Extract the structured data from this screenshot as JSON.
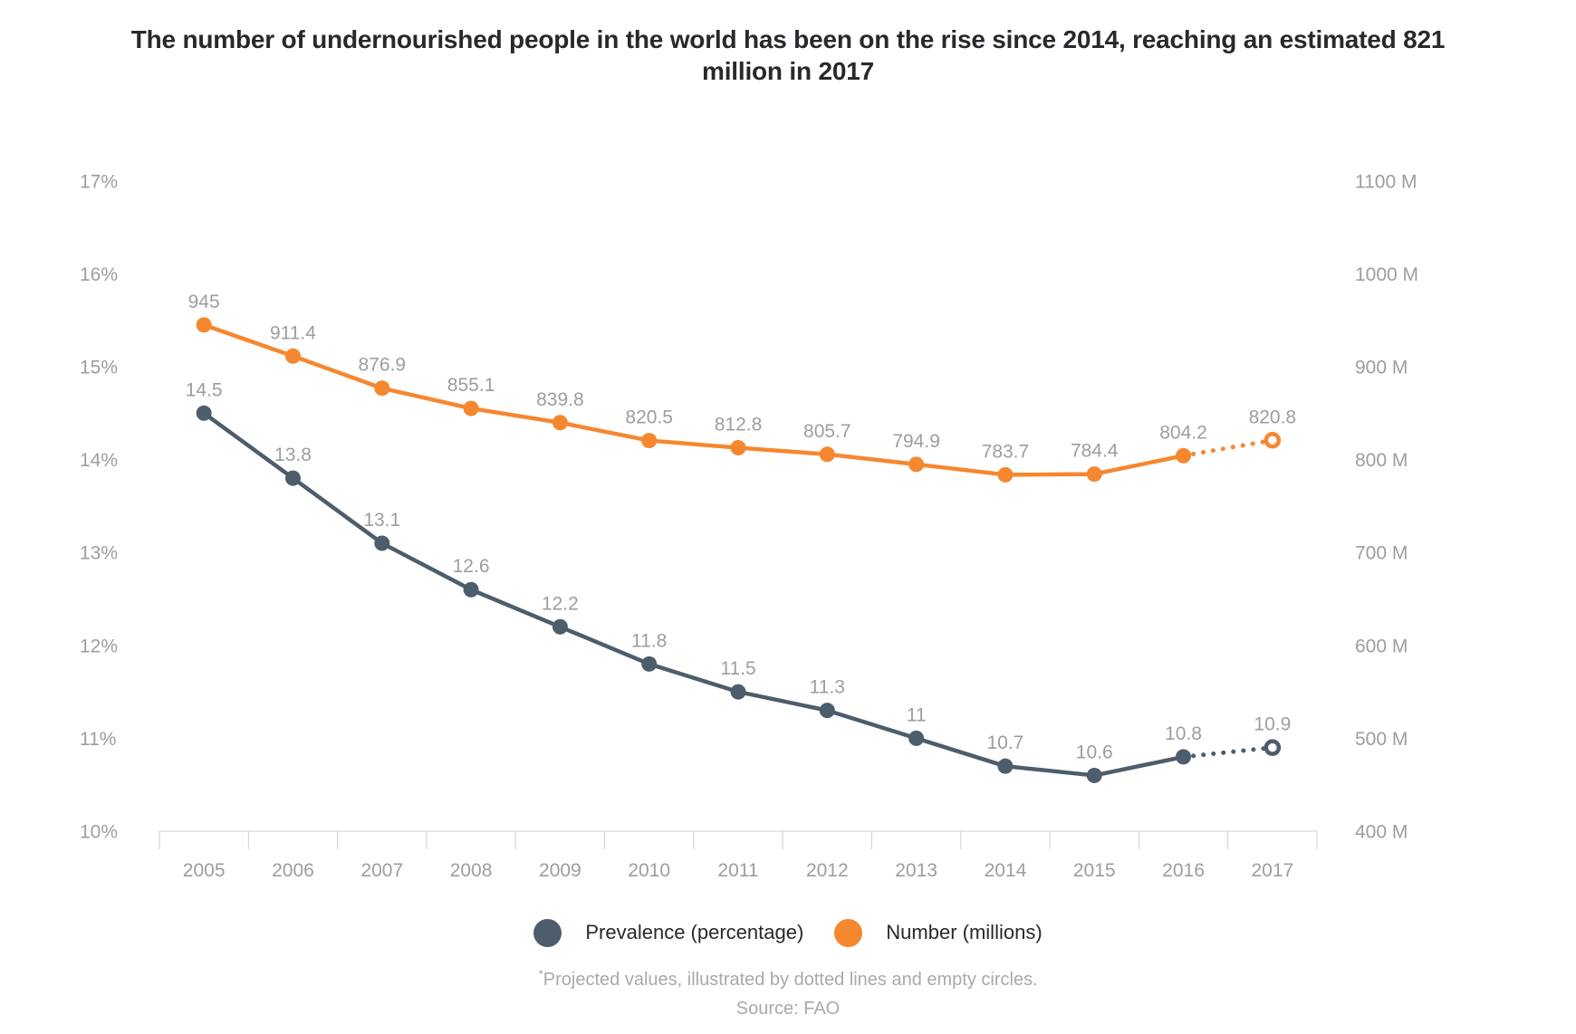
{
  "page": {
    "title": "The number of undernourished people in the world has been on the rise since 2014, reaching an estimated 821\nmillion in 2017",
    "footnote_marker": "*",
    "footnote": "Projected values, illustrated by dotted lines and empty circles.",
    "source": "Source: FAO"
  },
  "legend": {
    "items": [
      {
        "label": "Prevalence (percentage)",
        "color": "#4d5d6c"
      },
      {
        "label": "Number (millions)",
        "color": "#f5872f"
      }
    ]
  },
  "colors": {
    "title": "#26292e",
    "legend_text": "#26292e",
    "axis_text": "#9b9ea1",
    "data_label": "#9b9ea1",
    "axis_line": "#cdcfd0",
    "footnote": "#a7a9ac",
    "background": "#ffffff",
    "prevalence_series": "#4d5d6c",
    "number_series": "#f5872f"
  },
  "chart_data": {
    "type": "line",
    "title": "The number of undernourished people in the world has been on the rise since 2014, reaching an estimated 821 million in 2017",
    "x": [
      "2005",
      "2006",
      "2007",
      "2008",
      "2009",
      "2010",
      "2011",
      "2012",
      "2013",
      "2014",
      "2015",
      "2016",
      "2017"
    ],
    "grid": false,
    "legend_position": "bottom",
    "annotation": "Projected values, illustrated by dotted lines and empty circles.",
    "source": "FAO",
    "left_axis": {
      "unit": "%",
      "min": 10,
      "max": 17,
      "tick_step": 1,
      "tick_labels": [
        "10%",
        "11%",
        "12%",
        "13%",
        "14%",
        "15%",
        "16%",
        "17%"
      ]
    },
    "right_axis": {
      "unit": "M",
      "min": 400,
      "max": 1100,
      "tick_step": 100,
      "tick_labels": [
        "400 M",
        "500 M",
        "600 M",
        "700 M",
        "800 M",
        "900 M",
        "1000 M",
        "1100 M"
      ]
    },
    "series": [
      {
        "name": "Prevalence (percentage)",
        "slug": "prevalence",
        "axis": "left",
        "color": "#4d5d6c",
        "values": [
          14.5,
          13.8,
          13.1,
          12.6,
          12.2,
          11.8,
          11.5,
          11.3,
          11,
          10.7,
          10.6,
          10.8,
          10.9
        ],
        "labels": [
          "14.5",
          "13.8",
          "13.1",
          "12.6",
          "12.2",
          "11.8",
          "11.5",
          "11.3",
          "11",
          "10.7",
          "10.6",
          "10.8",
          "10.9"
        ],
        "projected_from_index": 11
      },
      {
        "name": "Number (millions)",
        "slug": "number",
        "axis": "right",
        "color": "#f5872f",
        "values": [
          945,
          911.4,
          876.9,
          855.1,
          839.8,
          820.5,
          812.8,
          805.7,
          794.9,
          783.7,
          784.4,
          804.2,
          820.8
        ],
        "labels": [
          "945",
          "911.4",
          "876.9",
          "855.1",
          "839.8",
          "820.5",
          "812.8",
          "805.7",
          "794.9",
          "783.7",
          "784.4",
          "804.2",
          "820.8"
        ],
        "projected_from_index": 11
      }
    ]
  }
}
